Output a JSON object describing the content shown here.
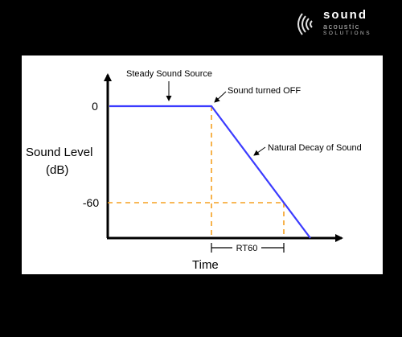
{
  "logo": {
    "name": "sound",
    "line2": "acoustic",
    "line3": "SOLUTIONS"
  },
  "diagram": {
    "y_axis_label_line1": "Sound Level",
    "y_axis_label_line2": "(dB)",
    "x_axis_label": "Time",
    "tick_top": "0",
    "tick_bottom": "-60",
    "annotation_steady": "Steady Sound Source",
    "annotation_off": "Sound turned OFF",
    "annotation_decay": "Natural Decay of Sound",
    "annotation_rt60": "RT60",
    "colors": {
      "line": "#3b3bff",
      "guide": "#f5a020",
      "axis": "#000000"
    }
  }
}
